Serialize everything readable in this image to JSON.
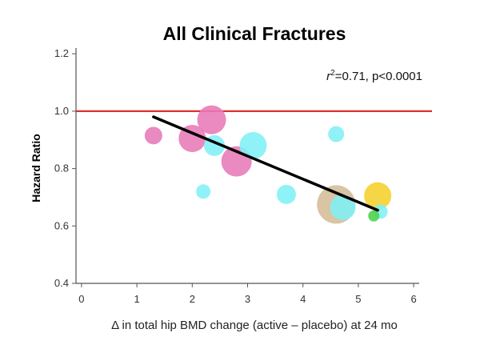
{
  "chart_data": {
    "type": "scatter",
    "title": "All Clinical Fractures",
    "xlabel": "Δ in total hip BMD change (active – placebo) at 24 mo",
    "ylabel": "Hazard Ratio",
    "xlim": [
      -0.1,
      6.1
    ],
    "ylim": [
      0.4,
      1.22
    ],
    "xticks": [
      "0",
      "1",
      "2",
      "3",
      "4",
      "5",
      "6"
    ],
    "yticks": [
      "0.4",
      "0.6",
      "0.8",
      "1.0",
      "1.2"
    ],
    "reference_line": {
      "y": 1.0,
      "color": "#e03030"
    },
    "regression_line": {
      "x": [
        1.3,
        5.35
      ],
      "y": [
        0.98,
        0.655
      ],
      "color": "#000000"
    },
    "annotation": {
      "prefix": "r",
      "superscript": "2",
      "text": "=0.71, p<0.0001"
    },
    "grid": false,
    "points": [
      {
        "x": 1.3,
        "y": 0.915,
        "size": 11,
        "color": "#e879b8"
      },
      {
        "x": 2.0,
        "y": 0.905,
        "size": 17,
        "color": "#e879b8"
      },
      {
        "x": 2.35,
        "y": 0.97,
        "size": 18,
        "color": "#e879b8"
      },
      {
        "x": 2.4,
        "y": 0.88,
        "size": 13,
        "color": "#7ff0f5"
      },
      {
        "x": 2.2,
        "y": 0.72,
        "size": 9,
        "color": "#7ff0f5"
      },
      {
        "x": 2.8,
        "y": 0.825,
        "size": 19,
        "color": "#e879b8"
      },
      {
        "x": 3.1,
        "y": 0.88,
        "size": 17,
        "color": "#7ff0f5"
      },
      {
        "x": 3.7,
        "y": 0.71,
        "size": 12,
        "color": "#7ff0f5"
      },
      {
        "x": 4.6,
        "y": 0.92,
        "size": 10,
        "color": "#7ff0f5"
      },
      {
        "x": 4.6,
        "y": 0.675,
        "size": 24,
        "color": "#d4bc96"
      },
      {
        "x": 4.72,
        "y": 0.665,
        "size": 16,
        "color": "#7ff0f5"
      },
      {
        "x": 5.35,
        "y": 0.705,
        "size": 17,
        "color": "#f5d02a"
      },
      {
        "x": 5.4,
        "y": 0.65,
        "size": 9,
        "color": "#7ff0f5"
      },
      {
        "x": 5.28,
        "y": 0.635,
        "size": 7,
        "color": "#4cd14a"
      }
    ]
  }
}
